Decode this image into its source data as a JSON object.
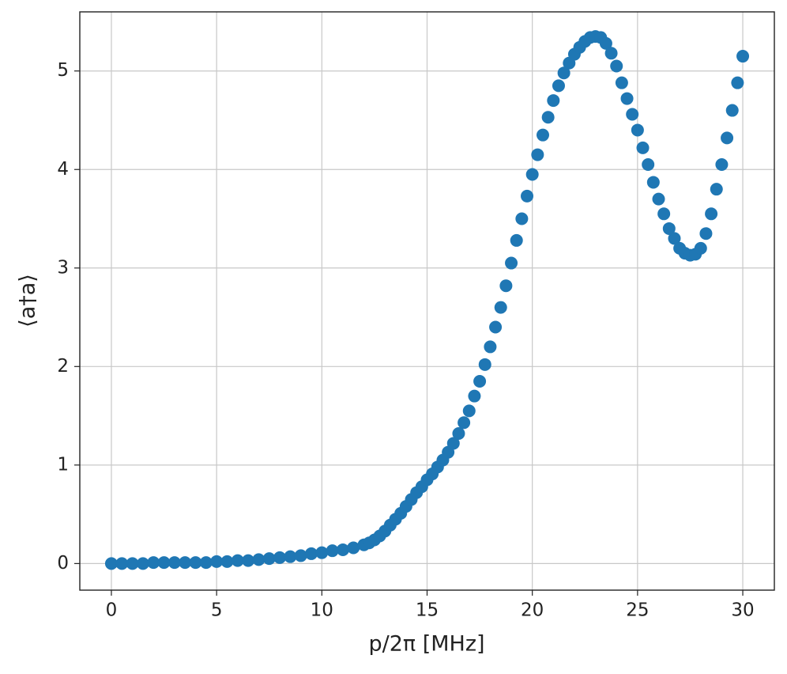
{
  "chart_data": {
    "type": "scatter",
    "xlabel": "p/2π [MHz]",
    "ylabel": "⟨a†a⟩",
    "color": "#1f77b4",
    "grid": true,
    "xlim": [
      -1.5,
      31.5
    ],
    "ylim": [
      -0.27,
      5.6
    ],
    "xticks": [
      0,
      5,
      10,
      15,
      20,
      25,
      30
    ],
    "yticks": [
      0,
      1,
      2,
      3,
      4,
      5
    ],
    "x": [
      0,
      0.5,
      1,
      1.5,
      2,
      2.5,
      3,
      3.5,
      4,
      4.5,
      5,
      5.5,
      6,
      6.5,
      7,
      7.5,
      8,
      8.5,
      9,
      9.5,
      10,
      10.5,
      11,
      11.5,
      12,
      12.25,
      12.5,
      12.75,
      13,
      13.25,
      13.5,
      13.75,
      14,
      14.25,
      14.5,
      14.75,
      15,
      15.25,
      15.5,
      15.75,
      16,
      16.25,
      16.5,
      16.75,
      17,
      17.25,
      17.5,
      17.75,
      18,
      18.25,
      18.5,
      18.75,
      19,
      19.25,
      19.5,
      19.75,
      20,
      20.25,
      20.5,
      20.75,
      21,
      21.25,
      21.5,
      21.75,
      22,
      22.25,
      22.5,
      22.75,
      23,
      23.25,
      23.5,
      23.75,
      24,
      24.25,
      24.5,
      24.75,
      25,
      25.25,
      25.5,
      25.75,
      26,
      26.25,
      26.5,
      26.75,
      27,
      27.25,
      27.5,
      27.75,
      28,
      28.25,
      28.5,
      28.75,
      29,
      29.25,
      29.5,
      29.75,
      30
    ],
    "values": [
      0,
      0,
      0,
      0,
      0.01,
      0.01,
      0.01,
      0.01,
      0.01,
      0.01,
      0.02,
      0.02,
      0.03,
      0.03,
      0.04,
      0.05,
      0.06,
      0.07,
      0.08,
      0.1,
      0.11,
      0.13,
      0.14,
      0.16,
      0.19,
      0.21,
      0.24,
      0.28,
      0.33,
      0.39,
      0.45,
      0.51,
      0.58,
      0.65,
      0.72,
      0.78,
      0.85,
      0.91,
      0.98,
      1.05,
      1.13,
      1.22,
      1.32,
      1.43,
      1.55,
      1.7,
      1.85,
      2.02,
      2.2,
      2.4,
      2.6,
      2.82,
      3.05,
      3.28,
      3.5,
      3.73,
      3.95,
      4.15,
      4.35,
      4.53,
      4.7,
      4.85,
      4.98,
      5.08,
      5.17,
      5.24,
      5.3,
      5.34,
      5.35,
      5.34,
      5.28,
      5.18,
      5.05,
      4.88,
      4.72,
      4.56,
      4.4,
      4.22,
      4.05,
      3.87,
      3.7,
      3.55,
      3.4,
      3.3,
      3.2,
      3.15,
      3.13,
      3.14,
      3.2,
      3.35,
      3.55,
      3.8,
      4.05,
      4.32,
      4.6,
      4.88,
      5.15
    ]
  }
}
